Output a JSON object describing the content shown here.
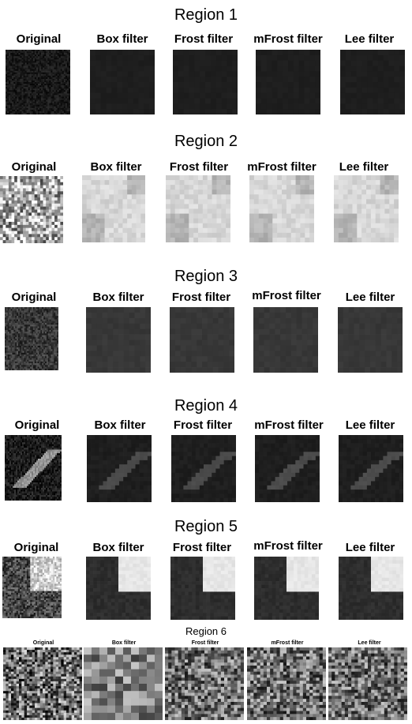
{
  "figure": {
    "regions": [
      {
        "title": "Region 1",
        "labels": [
          "Original",
          "Box filter",
          "Frost filter",
          "mFrost filter",
          "Lee filter"
        ]
      },
      {
        "title": "Region 2",
        "labels": [
          "Original",
          "Box filter",
          "Frost filter",
          "mFrost filter",
          "Lee filter"
        ]
      },
      {
        "title": "Region 3",
        "labels": [
          "Original",
          "Box filter",
          "Frost filter",
          "mFrost filter",
          "Lee filter"
        ]
      },
      {
        "title": "Region 4",
        "labels": [
          "Original",
          "Box filter",
          "Frost filter",
          "mFrost filter",
          "Lee filter"
        ]
      },
      {
        "title": "Region 5",
        "labels": [
          "Original",
          "Box filter",
          "Frost filter",
          "mFrost filter",
          "Lee filter"
        ]
      },
      {
        "title": "Region 6",
        "labels": [
          "Original",
          "Box filter",
          "Frost filter",
          "mFrost filter",
          "Lee filter"
        ]
      }
    ]
  },
  "colors": {
    "background": "#ffffff",
    "dark_tile": "#1b1b1b",
    "mid_tile": "#2a2a2a",
    "light_tile": "#e6e6e6"
  }
}
